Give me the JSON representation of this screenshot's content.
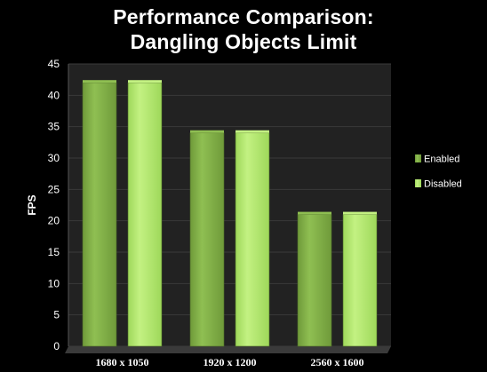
{
  "chart_data": {
    "type": "bar",
    "title_line1": "Performance Comparison:",
    "title_line2": "Dangling Objects Limit",
    "ylabel": "FPS",
    "xlabel": "",
    "categories": [
      "1680 x 1050",
      "1920 x 1200",
      "2560 x 1600"
    ],
    "series": [
      {
        "name": "Enabled",
        "values": [
          42,
          34,
          21
        ],
        "color": "#6f9a3a",
        "highlight": "#8fbf52"
      },
      {
        "name": "Disabled",
        "values": [
          42,
          34,
          21
        ],
        "color": "#9ed85a",
        "highlight": "#c3f182"
      }
    ],
    "ylim": [
      0,
      45
    ],
    "yticks": [
      0,
      5,
      10,
      15,
      20,
      25,
      30,
      35,
      40,
      45
    ],
    "grid": true,
    "legend_position": "right",
    "plot_background": "#222222",
    "grid_color": "#3a3a3a"
  }
}
